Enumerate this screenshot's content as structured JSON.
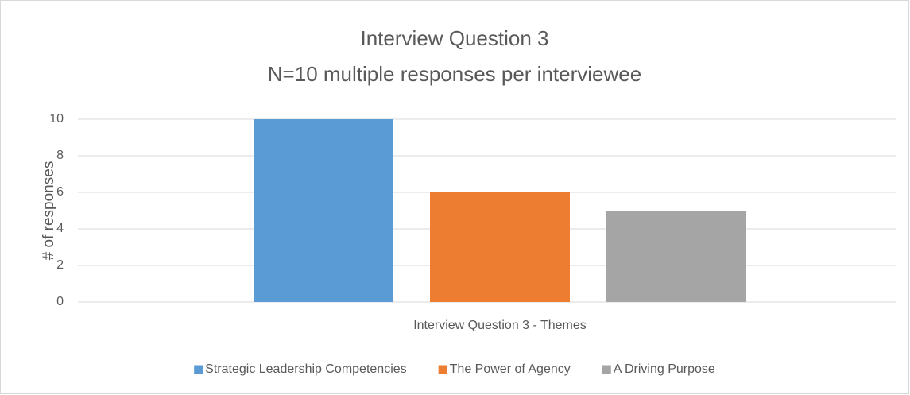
{
  "chart_data": {
    "type": "bar",
    "title": "Interview Question 3",
    "subtitle": "N=10 multiple responses per interviewee",
    "y_label": "# of responses",
    "categories": [
      "Interview Question 3 - Themes"
    ],
    "series": [
      {
        "name": "Strategic Leadership Competencies",
        "color": "#5b9bd5",
        "values": [
          10
        ]
      },
      {
        "name": "The Power of Agency",
        "color": "#ed7d31",
        "values": [
          6
        ]
      },
      {
        "name": "A Driving Purpose",
        "color": "#a5a5a5",
        "values": [
          5
        ]
      }
    ],
    "ylim": [
      0,
      10
    ],
    "yticks": [
      0,
      2,
      4,
      6,
      8,
      10
    ],
    "grid": true,
    "legend": "bottom"
  }
}
